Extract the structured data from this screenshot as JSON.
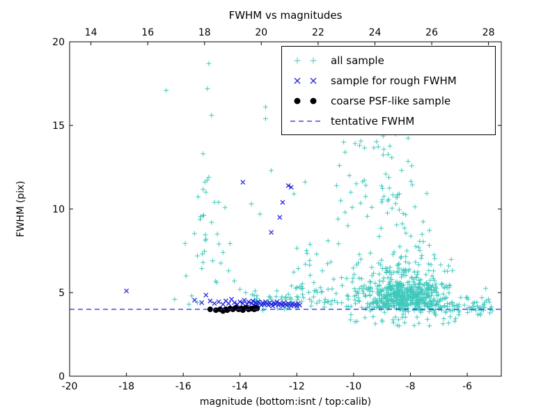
{
  "figure": {
    "background": "#ffffff",
    "axes_edge_color": "#000000"
  },
  "chart_data": {
    "type": "scatter",
    "title": "FWHM vs magnitudes",
    "xlabel": "magnitude (bottom:isnt / top:calib)",
    "ylabel": "FWHM (pix)",
    "xlim": [
      -20,
      -4.8
    ],
    "ylim": [
      0,
      20
    ],
    "top_xlim": [
      13.25,
      28.45
    ],
    "x_ticks": [
      -20,
      -18,
      -16,
      -14,
      -12,
      -10,
      -8,
      -6
    ],
    "y_ticks": [
      0,
      5,
      10,
      15,
      20
    ],
    "top_ticks": [
      14,
      16,
      18,
      20,
      22,
      24,
      26,
      28
    ],
    "grid": false,
    "legend_position": "upper right",
    "series": [
      {
        "name": "all sample",
        "marker": "plus",
        "color": "#3fc9bd",
        "seed": 42,
        "points": [
          [
            -16.6,
            17.1
          ],
          [
            -15.1,
            18.7
          ],
          [
            -15.15,
            17.2
          ],
          [
            -15.0,
            15.6
          ],
          [
            -15.3,
            13.3
          ],
          [
            -15.1,
            11.9
          ],
          [
            -15.2,
            11.0
          ],
          [
            -14.9,
            10.4
          ],
          [
            -15.3,
            9.6
          ],
          [
            -15.0,
            9.2
          ],
          [
            -14.8,
            8.5
          ],
          [
            -15.2,
            8.2
          ],
          [
            -15.5,
            7.2
          ],
          [
            -15.3,
            6.8
          ],
          [
            -14.6,
            7.4
          ],
          [
            -15.9,
            6.0
          ],
          [
            -15.7,
            4.8
          ],
          [
            -15.5,
            4.4
          ],
          [
            -15.8,
            4.3
          ],
          [
            -16.3,
            4.6
          ],
          [
            -14.4,
            6.3
          ],
          [
            -14.2,
            5.7
          ],
          [
            -14.0,
            5.2
          ],
          [
            -13.8,
            5.0
          ],
          [
            -13.6,
            10.3
          ],
          [
            -13.4,
            4.8
          ],
          [
            -13.3,
            9.7
          ],
          [
            -13.1,
            16.1
          ],
          [
            -13.1,
            15.4
          ],
          [
            -12.9,
            12.3
          ],
          [
            -12.7,
            5.1
          ],
          [
            -12.3,
            4.9
          ],
          [
            -12.0,
            5.3
          ],
          [
            -12.1,
            10.9
          ],
          [
            -10.2,
            14.6
          ],
          [
            -10.35,
            14.0
          ],
          [
            -10.3,
            13.4
          ],
          [
            -10.5,
            12.6
          ],
          [
            -10.15,
            12.0
          ],
          [
            -10.6,
            11.4
          ],
          [
            -10.1,
            11.0
          ],
          [
            -10.45,
            10.5
          ],
          [
            -10.05,
            10.1
          ],
          [
            -10.3,
            9.8
          ],
          [
            -10.55,
            9.4
          ],
          [
            -10.2,
            9.0
          ],
          [
            -11.4,
            5.6
          ],
          [
            -11.1,
            6.3
          ],
          [
            -10.9,
            5.2
          ],
          [
            -11.8,
            4.9
          ],
          [
            -11.2,
            4.5
          ],
          [
            -10.8,
            4.3
          ],
          [
            -11.5,
            4.2
          ],
          [
            -11.0,
            4.6
          ],
          [
            -10.7,
            5.8
          ],
          [
            -11.3,
            7.3
          ],
          [
            -10.9,
            8.1
          ],
          [
            -11.7,
            6.7
          ],
          [
            -6.9,
            4.1
          ],
          [
            -6.7,
            4.35
          ],
          [
            -6.5,
            4.2
          ],
          [
            -6.3,
            3.95
          ],
          [
            -6.1,
            4.25
          ],
          [
            -5.9,
            4.1
          ],
          [
            -5.75,
            4.4
          ],
          [
            -5.6,
            4.05
          ],
          [
            -5.45,
            4.2
          ],
          [
            -5.35,
            5.25
          ],
          [
            -5.25,
            4.6
          ],
          [
            -5.15,
            4.15
          ],
          [
            -7.4,
            3.4
          ],
          [
            -8.2,
            3.2
          ],
          [
            -9.0,
            3.35
          ],
          [
            -9.6,
            3.5
          ],
          [
            -6.6,
            3.55
          ]
        ],
        "clusters": [
          {
            "n": 620,
            "x": {
              "dist": "normal",
              "mean": -8.15,
              "sd": 0.8,
              "min": -10.3,
              "max": -6.5
            },
            "y": {
              "dist": "lognormal_shift",
              "base": 3.55,
              "mu": 0.28,
              "sigma": 0.55,
              "max": 9.8
            }
          },
          {
            "n": 55,
            "x": {
              "dist": "normal",
              "mean": -8.8,
              "sd": 0.55,
              "min": -10.0,
              "max": -7.3
            },
            "y": {
              "dist": "uniform",
              "min": 9.5,
              "max": 15.3
            }
          },
          {
            "n": 50,
            "x": {
              "dist": "uniform",
              "min": -7.3,
              "max": -5.1
            },
            "y": {
              "dist": "normal",
              "mean": 4.15,
              "sd": 0.3,
              "min": 3.4,
              "max": 5.2
            }
          },
          {
            "n": 60,
            "x": {
              "dist": "uniform",
              "min": -12.3,
              "max": -9.9
            },
            "y": {
              "dist": "lognormal_shift",
              "base": 3.9,
              "mu": 0.1,
              "sigma": 0.75,
              "max": 12.5
            }
          },
          {
            "n": 35,
            "x": {
              "dist": "uniform",
              "min": -13.6,
              "max": -11.9
            },
            "y": {
              "dist": "normal",
              "mean": 4.45,
              "sd": 0.3,
              "min": 3.9,
              "max": 5.4
            }
          },
          {
            "n": 22,
            "x": {
              "dist": "normal",
              "mean": -15.1,
              "sd": 0.4,
              "min": -16.0,
              "max": -14.3
            },
            "y": {
              "dist": "uniform",
              "min": 4.2,
              "max": 12.0
            }
          },
          {
            "n": 28,
            "x": {
              "dist": "uniform",
              "min": -10.2,
              "max": -6.2
            },
            "y": {
              "dist": "uniform",
              "min": 3.0,
              "max": 3.75
            }
          }
        ]
      },
      {
        "name": "sample for rough FWHM",
        "marker": "x",
        "color": "#2222dd",
        "points": [
          [
            -18.0,
            5.1
          ],
          [
            -15.6,
            4.55
          ],
          [
            -15.35,
            4.4
          ],
          [
            -15.2,
            4.85
          ],
          [
            -15.05,
            4.5
          ],
          [
            -14.9,
            4.35
          ],
          [
            -14.75,
            4.45
          ],
          [
            -14.6,
            4.3
          ],
          [
            -14.5,
            4.5
          ],
          [
            -14.4,
            4.35
          ],
          [
            -14.3,
            4.6
          ],
          [
            -14.2,
            4.4
          ],
          [
            -14.1,
            4.3
          ],
          [
            -14.0,
            4.45
          ],
          [
            -13.9,
            4.35
          ],
          [
            -13.85,
            4.55
          ],
          [
            -13.75,
            4.3
          ],
          [
            -13.7,
            4.45
          ],
          [
            -13.6,
            4.35
          ],
          [
            -13.55,
            4.5
          ],
          [
            -13.5,
            4.25
          ],
          [
            -13.45,
            4.4
          ],
          [
            -13.4,
            4.3
          ],
          [
            -13.35,
            4.45
          ],
          [
            -13.3,
            4.35
          ],
          [
            -13.25,
            4.25
          ],
          [
            -13.2,
            4.4
          ],
          [
            -13.15,
            4.3
          ],
          [
            -13.1,
            4.45
          ],
          [
            -13.05,
            4.35
          ],
          [
            -13.0,
            4.25
          ],
          [
            -12.95,
            4.4
          ],
          [
            -12.9,
            4.3
          ],
          [
            -12.85,
            4.2
          ],
          [
            -12.8,
            4.4
          ],
          [
            -12.75,
            4.3
          ],
          [
            -12.7,
            4.45
          ],
          [
            -12.65,
            4.25
          ],
          [
            -12.6,
            4.35
          ],
          [
            -12.55,
            4.3
          ],
          [
            -12.5,
            4.2
          ],
          [
            -12.45,
            4.4
          ],
          [
            -12.4,
            4.3
          ],
          [
            -12.35,
            4.25
          ],
          [
            -12.3,
            4.35
          ],
          [
            -12.25,
            4.3
          ],
          [
            -12.2,
            4.2
          ],
          [
            -12.15,
            4.35
          ],
          [
            -12.1,
            4.25
          ],
          [
            -12.05,
            4.3
          ],
          [
            -12.0,
            4.2
          ],
          [
            -11.95,
            4.35
          ],
          [
            -11.9,
            4.25
          ],
          [
            -13.9,
            11.6
          ],
          [
            -12.3,
            11.4
          ],
          [
            -12.2,
            11.3
          ],
          [
            -12.5,
            10.4
          ],
          [
            -12.6,
            9.5
          ],
          [
            -12.9,
            8.6
          ]
        ]
      },
      {
        "name": "coarse PSF-like sample",
        "marker": "dot",
        "color": "#000000",
        "points": [
          [
            -15.05,
            4.0
          ],
          [
            -14.85,
            3.95
          ],
          [
            -14.7,
            4.0
          ],
          [
            -14.6,
            3.9
          ],
          [
            -14.5,
            4.0
          ],
          [
            -14.45,
            3.95
          ],
          [
            -14.35,
            4.05
          ],
          [
            -14.25,
            4.0
          ],
          [
            -14.15,
            4.1
          ],
          [
            -14.05,
            4.0
          ],
          [
            -13.95,
            4.05
          ],
          [
            -13.9,
            3.95
          ],
          [
            -13.8,
            4.1
          ],
          [
            -13.7,
            4.0
          ],
          [
            -13.6,
            4.05
          ],
          [
            -13.5,
            4.0
          ],
          [
            -13.45,
            4.1
          ],
          [
            -13.4,
            4.05
          ]
        ]
      },
      {
        "name": "tentative FWHM",
        "type": "hline",
        "y": 4.0,
        "color": "#2222dd",
        "linestyle": "dashed"
      }
    ]
  }
}
